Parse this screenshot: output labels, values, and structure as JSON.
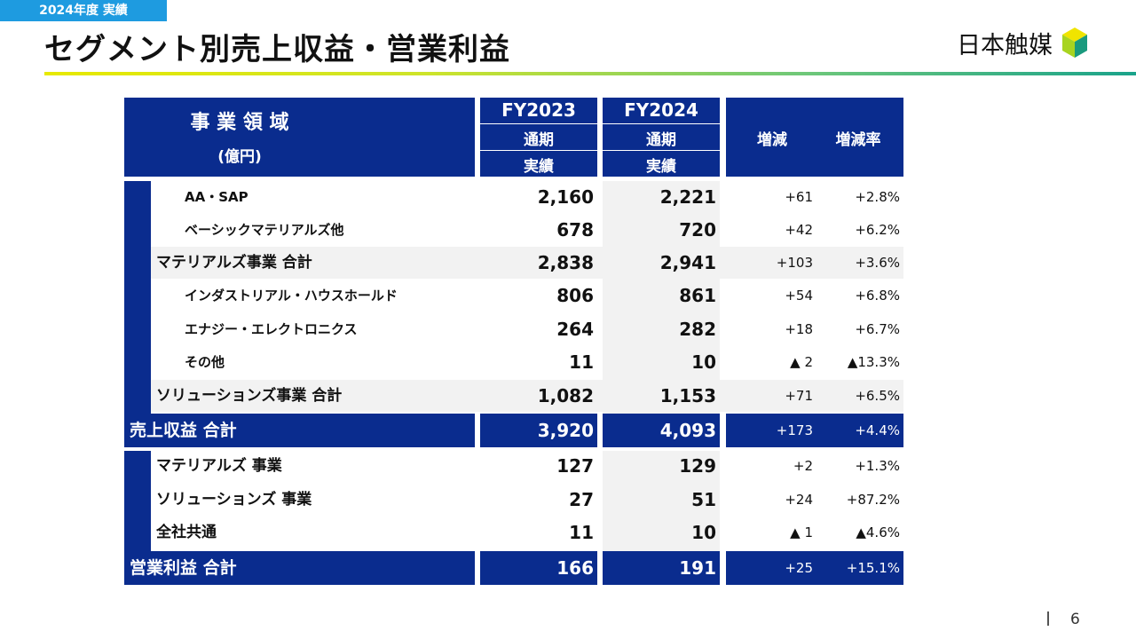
{
  "header": {
    "tag": "2024年度 実績",
    "title": "セグメント別売上収益・営業利益",
    "logo_text": "日本触媒"
  },
  "table": {
    "domain_title": "事 業 領 域",
    "unit": "(億円)",
    "fy2023": {
      "year": "FY2023",
      "period": "通期",
      "type": "実績"
    },
    "fy2024": {
      "year": "FY2024",
      "period": "通期",
      "type": "実績"
    },
    "change_label": "増減",
    "change_rate_label": "増減率",
    "sales_rows": [
      {
        "label": "AA・SAP",
        "fy2023": "2,160",
        "fy2024": "2,221",
        "change": "+61",
        "rate": "+2.8%"
      },
      {
        "label": "ベーシックマテリアルズ他",
        "fy2023": "678",
        "fy2024": "720",
        "change": "+42",
        "rate": "+6.2%"
      },
      {
        "label": "マテリアルズ事業 合計",
        "fy2023": "2,838",
        "fy2024": "2,941",
        "change": "+103",
        "rate": "+3.6%"
      },
      {
        "label": "インダストリアル・ハウスホールド",
        "fy2023": "806",
        "fy2024": "861",
        "change": "+54",
        "rate": "+6.8%"
      },
      {
        "label": "エナジー・エレクトロニクス",
        "fy2023": "264",
        "fy2024": "282",
        "change": "+18",
        "rate": "+6.7%"
      },
      {
        "label": "その他",
        "fy2023": "11",
        "fy2024": "10",
        "change": "▲ 2",
        "rate": "▲13.3%"
      },
      {
        "label": "ソリューションズ事業 合計",
        "fy2023": "1,082",
        "fy2024": "1,153",
        "change": "+71",
        "rate": "+6.5%"
      }
    ],
    "sales_total": {
      "label": "売上収益 合計",
      "fy2023": "3,920",
      "fy2024": "4,093",
      "change": "+173",
      "rate": "+4.4%"
    },
    "profit_rows": [
      {
        "label": "マテリアルズ 事業",
        "fy2023": "127",
        "fy2024": "129",
        "change": "+2",
        "rate": "+1.3%"
      },
      {
        "label": "ソリューションズ 事業",
        "fy2023": "27",
        "fy2024": "51",
        "change": "+24",
        "rate": "+87.2%"
      },
      {
        "label": "全社共通",
        "fy2023": "11",
        "fy2024": "10",
        "change": "▲ 1",
        "rate": "▲4.6%"
      }
    ],
    "profit_total": {
      "label": "営業利益 合計",
      "fy2023": "166",
      "fy2024": "191",
      "change": "+25",
      "rate": "+15.1%"
    }
  },
  "footer": {
    "page": "6"
  },
  "colors": {
    "navy": "#0a2c8e",
    "tag_blue": "#1e9be0",
    "band_gray": "#f2f2f2"
  }
}
